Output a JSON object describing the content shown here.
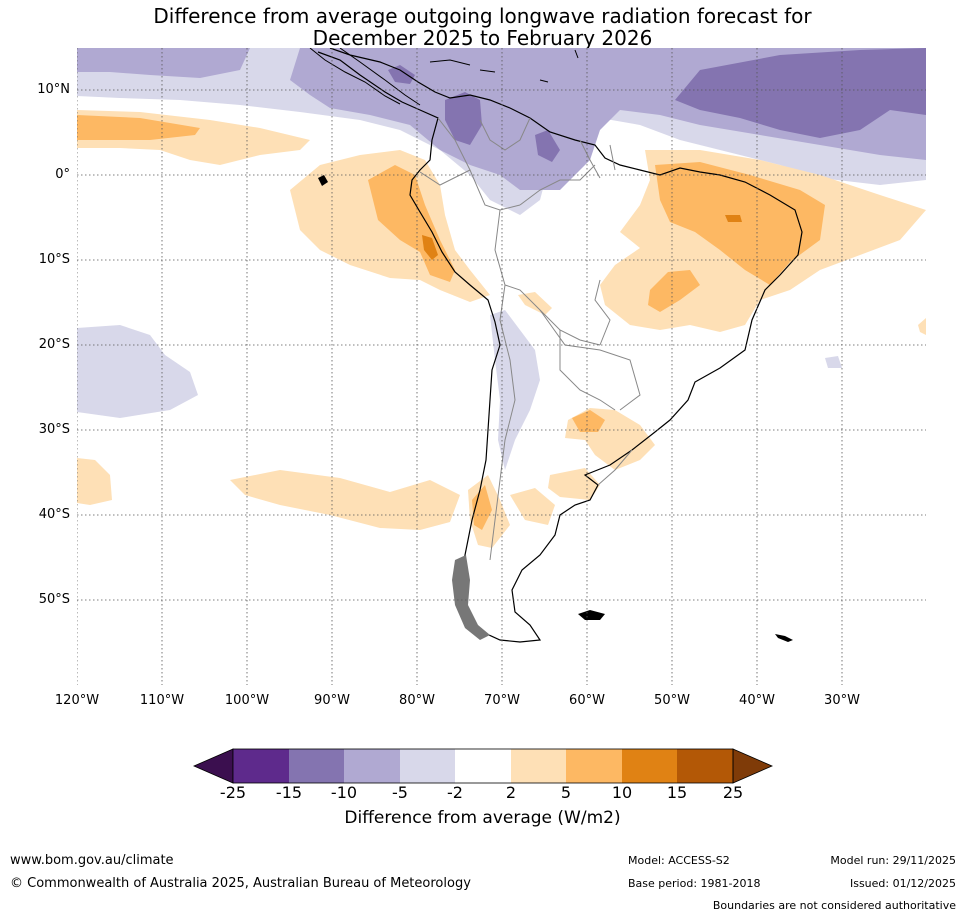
{
  "title": {
    "line1": "Difference from average outgoing longwave radiation forecast for",
    "line2": "December 2025 to February 2026"
  },
  "axes": {
    "lat_labels": [
      "10°N",
      "0°",
      "10°S",
      "20°S",
      "30°S",
      "40°S",
      "50°S"
    ],
    "lon_labels": [
      "120°W",
      "110°W",
      "100°W",
      "90°W",
      "80°W",
      "70°W",
      "60°W",
      "50°W",
      "40°W",
      "30°W"
    ]
  },
  "colorbar": {
    "ticks": [
      "-25",
      "-15",
      "-10",
      "-5",
      "-2",
      "2",
      "5",
      "10",
      "15",
      "25"
    ],
    "colors": [
      "#3b0f4f",
      "#5e2a8c",
      "#8474b0",
      "#b0a9d2",
      "#d8d8ea",
      "#ffffff",
      "#fee0b6",
      "#fdb863",
      "#e08214",
      "#b35806",
      "#7f3b08"
    ],
    "label": "Difference from average (W/m2)"
  },
  "footer": {
    "website": "www.bom.gov.au/climate",
    "copyright": "© Commonwealth of Australia 2025, Australian Bureau of Meteorology",
    "model": "Model: ACCESS-S2",
    "base_period": "Base period: 1981-2018",
    "model_run": "Model run: 29/11/2025",
    "issued": "Issued: 01/12/2025",
    "disclaimer": "Boundaries are not considered authoritative"
  }
}
